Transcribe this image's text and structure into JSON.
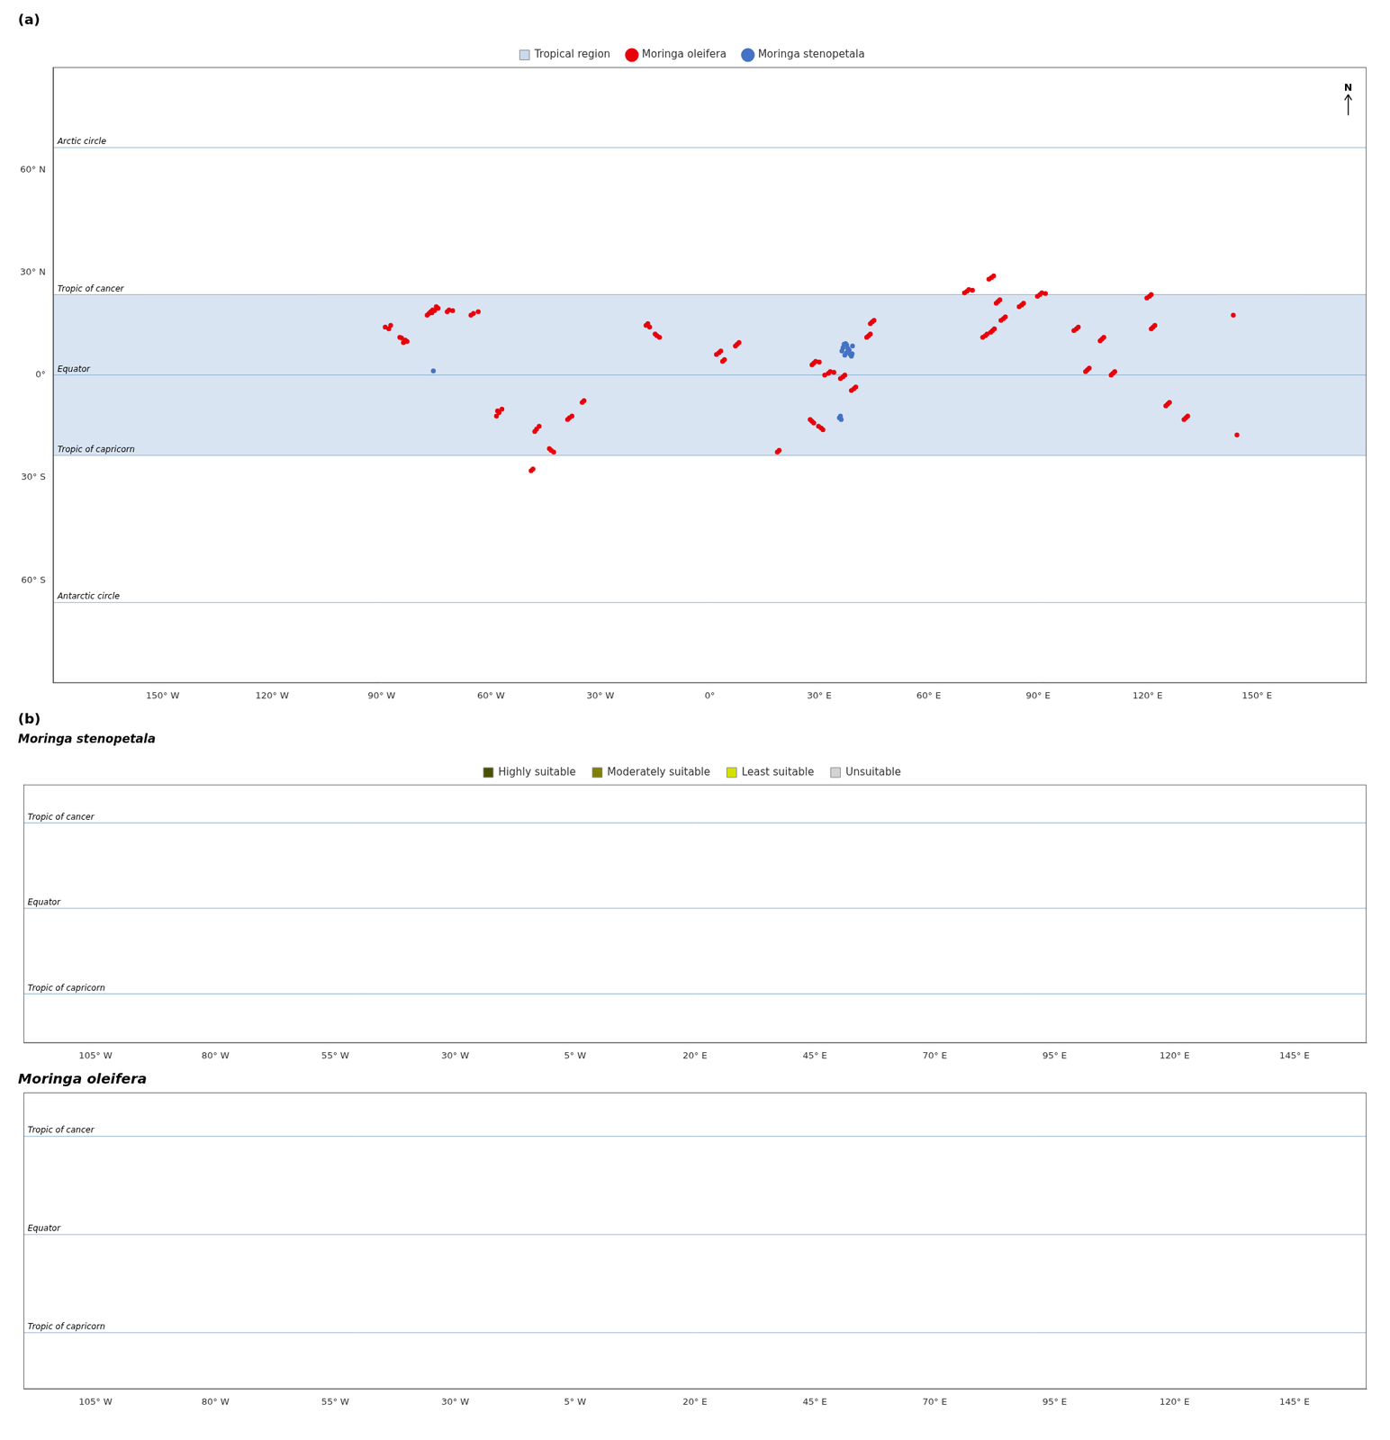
{
  "chart_data": [
    {
      "type": "scatter",
      "title": "(a)",
      "xlim": [
        -180,
        180
      ],
      "ylim": [
        -90,
        90
      ],
      "xticks": [
        {
          "value": -150,
          "label": "150° W"
        },
        {
          "value": -120,
          "label": "120° W"
        },
        {
          "value": -90,
          "label": "90° W"
        },
        {
          "value": -60,
          "label": "60° W"
        },
        {
          "value": -30,
          "label": "30° W"
        },
        {
          "value": 0,
          "label": "0°"
        },
        {
          "value": 30,
          "label": "30° E"
        },
        {
          "value": 60,
          "label": "60° E"
        },
        {
          "value": 90,
          "label": "90° E"
        },
        {
          "value": 120,
          "label": "120° E"
        },
        {
          "value": 150,
          "label": "150° E"
        }
      ],
      "yticks": [
        {
          "value": 60,
          "label": "60° N"
        },
        {
          "value": 30,
          "label": "30° N"
        },
        {
          "value": 0,
          "label": "0°"
        },
        {
          "value": -30,
          "label": "30° S"
        },
        {
          "value": -60,
          "label": "60° S"
        }
      ],
      "grid": false,
      "legend": "top",
      "series": [
        {
          "name": "Moringa stenopetala",
          "color": "#4472C4",
          "marker": "circle",
          "x": [
            36.8,
            37.5,
            38.2,
            39.1,
            37.0,
            38.5,
            36.5,
            37.8,
            38.0,
            39.0,
            37.2,
            38.8,
            36.2,
            37.5,
            35.5,
            36.0,
            35.8,
            -75.8
          ],
          "values": [
            9.0,
            6.5,
            7.2,
            8.5,
            5.8,
            6.0,
            8.0,
            7.8,
            6.8,
            6.2,
            9.2,
            5.5,
            7.0,
            8.8,
            -12.5,
            -13.0,
            -12.0,
            1.2
          ]
        },
        {
          "name": "Moringa oleifera",
          "color": "#E8000A",
          "marker": "circle",
          "x": [
            -84.0,
            -83.5,
            -84.5,
            -85.0,
            -83.0,
            -76.5,
            -77.0,
            -75.5,
            -76.0,
            -74.5,
            -77.5,
            -76.2,
            -75.0,
            -65.5,
            -64.8,
            -63.5,
            -72.0,
            -71.5,
            -70.5,
            -88.0,
            -89.0,
            -87.5,
            -58.2,
            -57.8,
            -58.5,
            -57.0,
            -47.5,
            -48.0,
            -46.8,
            -43.5,
            -44.0,
            -42.8,
            -38.5,
            -39.0,
            -37.8,
            -48.5,
            -49.0,
            -34.5,
            -35.0,
            2.5,
            3.0,
            1.8,
            7.5,
            8.0,
            7.0,
            3.5,
            4.0,
            -17.5,
            -17.0,
            -16.5,
            -14.5,
            -15.0,
            -13.8,
            28.5,
            29.0,
            28.0,
            30.0,
            32.5,
            33.0,
            31.5,
            34.0,
            36.5,
            37.0,
            35.8,
            39.5,
            40.0,
            38.8,
            30.5,
            31.0,
            29.8,
            28.0,
            28.5,
            27.5,
            18.5,
            19.0,
            43.5,
            44.0,
            43.0,
            44.5,
            45.0,
            44.0,
            70.5,
            71.0,
            69.8,
            72.0,
            77.5,
            78.0,
            77.0,
            80.5,
            81.0,
            79.8,
            77.2,
            77.8,
            76.5,
            75.5,
            76.0,
            74.8,
            79.0,
            79.5,
            78.5,
            85.5,
            86.0,
            84.8,
            90.5,
            91.0,
            89.8,
            92.0,
            100.5,
            101.0,
            99.8,
            103.5,
            104.0,
            103.0,
            107.5,
            108.0,
            107.0,
            121.5,
            122.0,
            121.0,
            120.5,
            121.0,
            119.8,
            110.5,
            111.0,
            110.0,
            125.5,
            126.0,
            125.0,
            130.5,
            131.0,
            130.0,
            144.5,
            143.5
          ],
          "values": [
            9.5,
            10.2,
            10.8,
            11.0,
            9.8,
            18.5,
            18.0,
            18.8,
            19.0,
            19.5,
            17.5,
            18.2,
            20.0,
            17.5,
            18.0,
            18.5,
            18.5,
            19.0,
            18.8,
            13.5,
            14.0,
            14.5,
            -10.5,
            -11.0,
            -12.0,
            -10.0,
            -15.8,
            -16.5,
            -15.0,
            -22.0,
            -21.5,
            -22.5,
            -12.5,
            -13.0,
            -12.0,
            -27.5,
            -28.0,
            -7.5,
            -8.0,
            6.5,
            7.0,
            6.0,
            9.0,
            9.5,
            8.5,
            4.0,
            4.5,
            14.5,
            15.0,
            14.0,
            11.5,
            12.0,
            11.0,
            3.5,
            4.0,
            3.0,
            3.8,
            0.5,
            1.0,
            0.0,
            0.8,
            -0.5,
            0.0,
            -1.0,
            -4.0,
            -3.5,
            -4.5,
            -15.5,
            -16.0,
            -15.0,
            -13.5,
            -14.0,
            -13.0,
            -22.5,
            -22.0,
            11.5,
            12.0,
            11.0,
            15.5,
            16.0,
            15.0,
            24.5,
            25.0,
            24.0,
            24.8,
            13.0,
            13.5,
            12.5,
            16.5,
            17.0,
            16.0,
            28.5,
            29.0,
            28.0,
            11.5,
            12.0,
            11.0,
            21.5,
            22.0,
            21.0,
            20.5,
            21.0,
            20.0,
            23.5,
            24.0,
            23.0,
            23.8,
            13.5,
            14.0,
            13.0,
            1.5,
            2.0,
            1.0,
            10.5,
            11.0,
            10.0,
            14.0,
            14.5,
            13.5,
            23.0,
            23.5,
            22.5,
            0.5,
            1.0,
            0.0,
            -8.5,
            -8.0,
            -9.0,
            -12.5,
            -12.0,
            -13.0,
            -17.5,
            17.5
          ]
        },
        {
          "name": "Tropical region",
          "type": "band",
          "color": "#C9D9EE",
          "values": [
            -23.5,
            23.5
          ]
        }
      ],
      "annotations": [
        {
          "y": 66.5,
          "text": "Arctic circle"
        },
        {
          "y": 23.5,
          "text": "Tropic of cancer"
        },
        {
          "y": 0,
          "text": "Equator"
        },
        {
          "y": -23.5,
          "text": "Tropic of capricorn"
        },
        {
          "y": -66.5,
          "text": "Antarctic circle"
        },
        {
          "x": 175,
          "y": 82,
          "text": "N"
        }
      ]
    },
    {
      "type": "scatter",
      "title": "(b)",
      "subtitle": "Moringa stenopetala",
      "xlim": [
        -120,
        160
      ],
      "ylim": [
        -37,
        34
      ],
      "xticks": [
        {
          "value": -105,
          "label": "105° W"
        },
        {
          "value": -80,
          "label": "80° W"
        },
        {
          "value": -55,
          "label": "55° W"
        },
        {
          "value": -30,
          "label": "30° W"
        },
        {
          "value": -5,
          "label": "5° W"
        },
        {
          "value": 20,
          "label": "20° E"
        },
        {
          "value": 45,
          "label": "45° E"
        },
        {
          "value": 70,
          "label": "70° E"
        },
        {
          "value": 95,
          "label": "95° E"
        },
        {
          "value": 120,
          "label": "120° E"
        },
        {
          "value": 145,
          "label": "145° E"
        }
      ],
      "tick_labels": "x",
      "grid": false,
      "legend": "top",
      "series": [
        {
          "name": "Unsuitable",
          "color": "#D3D3D3",
          "values": []
        },
        {
          "name": "Least suitable",
          "color": "#D4E000",
          "values": []
        },
        {
          "name": "Moderately suitable",
          "color": "#808000",
          "values": []
        },
        {
          "name": "Highly suitable",
          "color": "#4B5000",
          "values": []
        }
      ],
      "annotations": [
        {
          "y": 23.5,
          "text": "Tropic of cancer"
        },
        {
          "y": 0,
          "text": "Equator"
        },
        {
          "y": -23.5,
          "text": "Tropic of capricorn"
        }
      ]
    },
    {
      "type": "scatter",
      "title": "Moringa oleifera",
      "xlim": [
        -120,
        160
      ],
      "ylim": [
        -37,
        34
      ],
      "xticks": [
        {
          "value": -105,
          "label": "105° W"
        },
        {
          "value": -80,
          "label": "80° W"
        },
        {
          "value": -55,
          "label": "55° W"
        },
        {
          "value": -30,
          "label": "30° W"
        },
        {
          "value": -5,
          "label": "5° W"
        },
        {
          "value": 20,
          "label": "20° E"
        },
        {
          "value": 45,
          "label": "45° E"
        },
        {
          "value": 70,
          "label": "70° E"
        },
        {
          "value": 95,
          "label": "95° E"
        },
        {
          "value": 120,
          "label": "120° E"
        },
        {
          "value": 145,
          "label": "145° E"
        }
      ],
      "tick_labels": "x",
      "grid": false,
      "series": [],
      "annotations": [
        {
          "y": 23.5,
          "text": "Tropic of cancer"
        },
        {
          "y": 0,
          "text": "Equator"
        },
        {
          "y": -23.5,
          "text": "Tropic of capricorn"
        }
      ]
    }
  ]
}
